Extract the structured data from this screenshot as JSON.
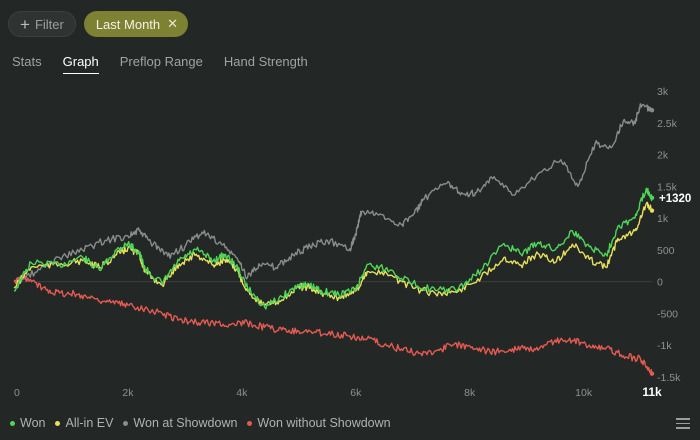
{
  "filters": {
    "filter_label": "Filter",
    "active_filter_label": "Last Month",
    "plus_icon": "+",
    "close_icon": "✕"
  },
  "tabs": [
    {
      "label": "Stats",
      "active": false
    },
    {
      "label": "Graph",
      "active": true
    },
    {
      "label": "Preflop Range",
      "active": false
    },
    {
      "label": "Hand Strength",
      "active": false
    }
  ],
  "chart_data": {
    "type": "line",
    "x_ticks": [
      "0",
      "2k",
      "4k",
      "6k",
      "8k",
      "10k",
      "11k"
    ],
    "x_tick_values": [
      0,
      2000,
      4000,
      6000,
      8000,
      10000,
      11200
    ],
    "y_ticks": [
      "3k",
      "2.5k",
      "2k",
      "1.5k",
      "1k",
      "500",
      "0",
      "-500",
      "-1k",
      "-1.5k"
    ],
    "y_tick_values": [
      3000,
      2500,
      2000,
      1500,
      1000,
      500,
      0,
      -500,
      -1000,
      -1500
    ],
    "xlim": [
      0,
      11200
    ],
    "ylim": [
      -1550,
      3050
    ],
    "final_label": "+1320",
    "series": [
      {
        "name": "Won",
        "color": "#4fd65a",
        "x": [
          0,
          300,
          800,
          1200,
          1500,
          1800,
          2000,
          2200,
          2300,
          2600,
          2900,
          3200,
          3500,
          3700,
          3900,
          4100,
          4400,
          4700,
          5000,
          5200,
          5400,
          5700,
          6000,
          6200,
          6600,
          7000,
          7400,
          7800,
          8200,
          8600,
          8900,
          9200,
          9500,
          9800,
          10100,
          10400,
          10600,
          10900,
          11100,
          11200
        ],
        "y": [
          -150,
          300,
          260,
          390,
          180,
          500,
          600,
          450,
          200,
          -30,
          330,
          500,
          330,
          430,
          250,
          -100,
          -400,
          -240,
          -50,
          -70,
          -150,
          -200,
          -120,
          270,
          180,
          -30,
          -140,
          -120,
          180,
          600,
          430,
          620,
          500,
          800,
          550,
          420,
          870,
          1000,
          1470,
          1320
        ]
      },
      {
        "name": "All-in EV",
        "color": "#e6e05a",
        "x": [
          0,
          300,
          800,
          1200,
          1500,
          1800,
          2000,
          2200,
          2300,
          2600,
          2900,
          3200,
          3500,
          3700,
          3900,
          4100,
          4400,
          4700,
          5000,
          5200,
          5400,
          5700,
          6000,
          6200,
          6600,
          7000,
          7400,
          7800,
          8200,
          8600,
          8900,
          9200,
          9500,
          9800,
          10100,
          10400,
          10600,
          10900,
          11100,
          11200
        ],
        "y": [
          -100,
          230,
          270,
          330,
          220,
          420,
          530,
          430,
          150,
          -50,
          280,
          430,
          260,
          340,
          200,
          -150,
          -380,
          -290,
          -80,
          -100,
          -180,
          -250,
          -150,
          160,
          100,
          -100,
          -190,
          -150,
          70,
          380,
          260,
          440,
          300,
          590,
          350,
          220,
          680,
          800,
          1230,
          1120
        ]
      },
      {
        "name": "Won at Showdown",
        "color": "#8a8c8b",
        "x": [
          0,
          400,
          800,
          1200,
          1600,
          2000,
          2200,
          2400,
          2700,
          3000,
          3300,
          3600,
          3900,
          4100,
          4300,
          4600,
          4900,
          5200,
          5500,
          5900,
          6000,
          6100,
          6400,
          6800,
          7000,
          7200,
          7600,
          7900,
          8100,
          8400,
          8800,
          9200,
          9600,
          9900,
          10200,
          10500,
          10700,
          10900,
          11000,
          11200
        ],
        "y": [
          0,
          150,
          380,
          500,
          650,
          720,
          800,
          620,
          400,
          550,
          780,
          620,
          380,
          70,
          280,
          220,
          420,
          550,
          650,
          520,
          750,
          1100,
          1050,
          900,
          1040,
          1300,
          1550,
          1380,
          1400,
          1620,
          1370,
          1700,
          1920,
          1500,
          2170,
          2120,
          2540,
          2490,
          2800,
          2700
        ]
      },
      {
        "name": "Won without Showdown",
        "color": "#e45a52",
        "x": [
          0,
          200,
          500,
          800,
          1100,
          1400,
          1700,
          2000,
          2300,
          2600,
          2900,
          3200,
          3500,
          3800,
          4100,
          4400,
          4700,
          5000,
          5300,
          5600,
          5900,
          6200,
          6500,
          6800,
          7100,
          7400,
          7700,
          8000,
          8300,
          8600,
          8900,
          9200,
          9500,
          9800,
          10100,
          10400,
          10700,
          11000,
          11200
        ],
        "y": [
          0,
          60,
          -100,
          -180,
          -200,
          -260,
          -330,
          -370,
          -420,
          -500,
          -600,
          -640,
          -650,
          -680,
          -650,
          -720,
          -760,
          -780,
          -800,
          -820,
          -860,
          -900,
          -1000,
          -1060,
          -1130,
          -1090,
          -1000,
          -1010,
          -1100,
          -1100,
          -1030,
          -1080,
          -920,
          -930,
          -1000,
          -1040,
          -1170,
          -1220,
          -1450
        ]
      }
    ]
  },
  "legend": [
    {
      "label": "Won",
      "color": "#4fd65a"
    },
    {
      "label": "All-in EV",
      "color": "#e6e05a"
    },
    {
      "label": "Won at Showdown",
      "color": "#8a8c8b"
    },
    {
      "label": "Won without Showdown",
      "color": "#e45a52"
    }
  ],
  "menu_icon": "hamburger-menu-icon",
  "colors": {
    "background": "#232726",
    "grid": "#3a3f3e",
    "accent": "#7d8233"
  }
}
